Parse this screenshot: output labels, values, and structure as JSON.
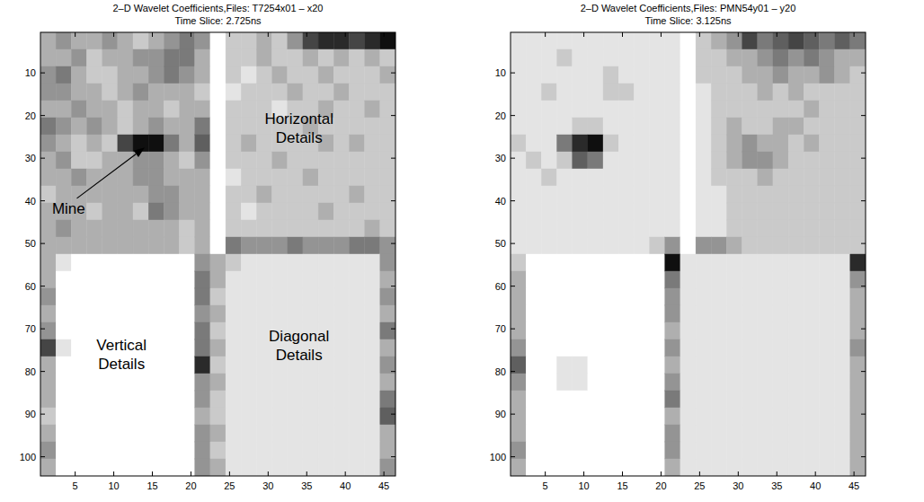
{
  "chart_data": [
    {
      "type": "heatmap",
      "title": "2–D Wavelet Coefficients,Files: T7254x01 – x20",
      "subtitle": "Time Slice: 2.725ns",
      "annotations": [
        "Mine",
        "Horizontal Details",
        "Vertical Details",
        "Diagonal Details"
      ],
      "xlim": [
        0.5,
        46.5
      ],
      "ylim": [
        0.5,
        104.5
      ],
      "xticks": [
        5,
        10,
        15,
        20,
        25,
        30,
        35,
        40,
        45
      ],
      "yticks": [
        10,
        20,
        30,
        40,
        50,
        60,
        70,
        80,
        90,
        100
      ],
      "clim": [
        0,
        9
      ],
      "x_bins": [
        0.5,
        2.5,
        4.5,
        6.5,
        8.5,
        10.5,
        12.5,
        14.5,
        16.5,
        18.5,
        20.5,
        22.5,
        24.5,
        26.5,
        28.5,
        30.5,
        32.5,
        34.5,
        36.5,
        38.5,
        40.5,
        42.5,
        44.5,
        46.5
      ],
      "y_bins": [
        0.5,
        4.5,
        8.5,
        12.5,
        16.5,
        20.5,
        24.5,
        28.5,
        32.5,
        36.5,
        40.5,
        44.5,
        48.5,
        52.5,
        56.5,
        60.5,
        64.5,
        68.5,
        72.5,
        76.5,
        80.5,
        84.5,
        88.5,
        92.5,
        96.5,
        100.5,
        104.5
      ],
      "cells": [
        [
          3,
          4,
          3,
          3,
          4,
          3,
          2,
          3,
          4,
          5,
          4,
          0,
          2,
          2,
          3,
          2,
          4,
          7,
          8,
          8,
          7,
          8,
          9
        ],
        [
          3,
          3,
          4,
          2,
          3,
          3,
          4,
          4,
          5,
          5,
          3,
          0,
          2,
          2,
          3,
          2,
          2,
          3,
          2,
          3,
          2,
          3,
          2
        ],
        [
          4,
          5,
          3,
          2,
          2,
          3,
          3,
          4,
          5,
          4,
          3,
          0,
          2,
          1,
          2,
          3,
          2,
          2,
          3,
          2,
          2,
          2,
          3
        ],
        [
          4,
          4,
          3,
          3,
          2,
          3,
          4,
          3,
          3,
          3,
          2,
          0,
          1,
          2,
          2,
          2,
          3,
          2,
          2,
          3,
          2,
          2,
          2
        ],
        [
          3,
          3,
          4,
          3,
          3,
          2,
          3,
          3,
          2,
          3,
          3,
          0,
          2,
          2,
          2,
          1,
          2,
          2,
          3,
          2,
          2,
          3,
          2
        ],
        [
          5,
          4,
          3,
          4,
          3,
          2,
          3,
          4,
          3,
          3,
          5,
          0,
          2,
          2,
          2,
          2,
          2,
          3,
          2,
          2,
          2,
          2,
          2
        ],
        [
          4,
          3,
          2,
          3,
          2,
          7,
          9,
          9,
          5,
          3,
          6,
          0,
          2,
          3,
          2,
          2,
          2,
          2,
          3,
          2,
          3,
          2,
          2
        ],
        [
          3,
          4,
          2,
          2,
          3,
          3,
          4,
          4,
          3,
          2,
          4,
          0,
          2,
          2,
          2,
          3,
          2,
          2,
          2,
          2,
          2,
          2,
          2
        ],
        [
          3,
          3,
          4,
          3,
          3,
          3,
          4,
          4,
          3,
          3,
          3,
          0,
          1,
          2,
          2,
          2,
          2,
          3,
          2,
          2,
          2,
          2,
          2
        ],
        [
          2,
          3,
          3,
          3,
          3,
          3,
          3,
          4,
          4,
          3,
          3,
          0,
          2,
          2,
          3,
          2,
          2,
          2,
          2,
          2,
          3,
          2,
          2
        ],
        [
          3,
          3,
          3,
          2,
          3,
          3,
          2,
          5,
          4,
          3,
          3,
          0,
          2,
          1,
          2,
          2,
          2,
          2,
          3,
          2,
          2,
          2,
          2
        ],
        [
          3,
          4,
          3,
          3,
          3,
          3,
          3,
          3,
          3,
          2,
          3,
          0,
          2,
          2,
          2,
          2,
          2,
          2,
          2,
          2,
          2,
          3,
          2
        ],
        [
          3,
          3,
          3,
          3,
          3,
          3,
          3,
          3,
          3,
          2,
          3,
          0,
          5,
          4,
          4,
          4,
          5,
          4,
          4,
          4,
          5,
          5,
          4
        ],
        [
          3,
          1,
          0,
          0,
          0,
          0,
          0,
          0,
          0,
          0,
          4,
          3,
          2,
          1,
          1,
          1,
          1,
          1,
          1,
          1,
          1,
          1,
          4
        ],
        [
          3,
          0,
          0,
          0,
          0,
          0,
          0,
          0,
          0,
          0,
          5,
          3,
          1,
          1,
          1,
          1,
          1,
          1,
          1,
          1,
          1,
          1,
          3
        ],
        [
          4,
          0,
          0,
          0,
          0,
          0,
          0,
          0,
          0,
          0,
          5,
          2,
          1,
          1,
          1,
          1,
          1,
          1,
          1,
          1,
          1,
          1,
          4
        ],
        [
          3,
          0,
          0,
          0,
          0,
          0,
          0,
          0,
          0,
          0,
          4,
          3,
          1,
          1,
          1,
          1,
          1,
          1,
          1,
          1,
          1,
          1,
          3
        ],
        [
          4,
          0,
          0,
          0,
          0,
          0,
          0,
          0,
          0,
          0,
          5,
          2,
          1,
          1,
          1,
          1,
          1,
          1,
          1,
          1,
          1,
          1,
          5
        ],
        [
          7,
          1,
          0,
          0,
          0,
          0,
          0,
          0,
          0,
          0,
          5,
          3,
          1,
          1,
          1,
          1,
          1,
          1,
          1,
          1,
          1,
          1,
          3
        ],
        [
          3,
          0,
          0,
          0,
          0,
          0,
          0,
          0,
          0,
          0,
          8,
          2,
          1,
          1,
          1,
          1,
          1,
          1,
          1,
          1,
          1,
          1,
          4
        ],
        [
          3,
          0,
          0,
          0,
          0,
          0,
          0,
          0,
          0,
          0,
          4,
          3,
          1,
          1,
          1,
          1,
          1,
          1,
          1,
          1,
          1,
          1,
          3
        ],
        [
          3,
          0,
          0,
          0,
          0,
          0,
          0,
          0,
          0,
          0,
          4,
          2,
          1,
          1,
          1,
          1,
          1,
          1,
          1,
          1,
          1,
          1,
          5
        ],
        [
          2,
          0,
          0,
          0,
          0,
          0,
          0,
          0,
          0,
          0,
          3,
          2,
          1,
          1,
          1,
          1,
          1,
          1,
          1,
          1,
          1,
          1,
          6
        ],
        [
          3,
          0,
          0,
          0,
          0,
          0,
          0,
          0,
          0,
          0,
          4,
          3,
          1,
          1,
          1,
          1,
          1,
          1,
          1,
          1,
          1,
          1,
          3
        ],
        [
          4,
          0,
          0,
          0,
          0,
          0,
          0,
          0,
          0,
          0,
          4,
          2,
          1,
          1,
          1,
          1,
          1,
          1,
          1,
          1,
          1,
          1,
          3
        ],
        [
          3,
          0,
          0,
          0,
          0,
          0,
          0,
          0,
          0,
          0,
          4,
          3,
          1,
          1,
          1,
          1,
          1,
          1,
          1,
          1,
          1,
          1,
          4
        ]
      ]
    },
    {
      "type": "heatmap",
      "title": "2–D Wavelet Coefficients,Files: PMN54y01 – y20",
      "subtitle": "Time Slice: 3.125ns",
      "xlim": [
        0.5,
        46.5
      ],
      "ylim": [
        0.5,
        104.5
      ],
      "xticks": [
        5,
        10,
        15,
        20,
        25,
        30,
        35,
        40,
        45
      ],
      "yticks": [
        10,
        20,
        30,
        40,
        50,
        60,
        70,
        80,
        90,
        100
      ],
      "clim": [
        0,
        9
      ],
      "x_bins": [
        0.5,
        2.5,
        4.5,
        6.5,
        8.5,
        10.5,
        12.5,
        14.5,
        16.5,
        18.5,
        20.5,
        22.5,
        24.5,
        26.5,
        28.5,
        30.5,
        32.5,
        34.5,
        36.5,
        38.5,
        40.5,
        42.5,
        44.5,
        46.5
      ],
      "y_bins": [
        0.5,
        4.5,
        8.5,
        12.5,
        16.5,
        20.5,
        24.5,
        28.5,
        32.5,
        36.5,
        40.5,
        44.5,
        48.5,
        52.5,
        56.5,
        60.5,
        64.5,
        68.5,
        72.5,
        76.5,
        80.5,
        84.5,
        88.5,
        92.5,
        96.5,
        100.5,
        104.5
      ],
      "cells": [
        [
          1,
          1,
          1,
          1,
          1,
          1,
          1,
          1,
          1,
          1,
          1,
          0,
          2,
          3,
          4,
          7,
          5,
          6,
          7,
          6,
          5,
          6,
          5
        ],
        [
          1,
          1,
          1,
          2,
          1,
          1,
          1,
          1,
          1,
          1,
          1,
          0,
          2,
          2,
          3,
          3,
          4,
          5,
          4,
          5,
          4,
          3,
          3
        ],
        [
          1,
          1,
          1,
          1,
          1,
          1,
          2,
          1,
          1,
          1,
          1,
          0,
          2,
          2,
          2,
          3,
          3,
          4,
          3,
          3,
          4,
          3,
          2
        ],
        [
          1,
          1,
          2,
          1,
          1,
          1,
          2,
          2,
          1,
          1,
          1,
          0,
          1,
          2,
          2,
          2,
          3,
          2,
          3,
          2,
          2,
          2,
          2
        ],
        [
          1,
          1,
          1,
          1,
          1,
          1,
          1,
          1,
          1,
          1,
          1,
          0,
          1,
          2,
          2,
          2,
          2,
          2,
          2,
          3,
          2,
          2,
          2
        ],
        [
          1,
          1,
          1,
          1,
          2,
          2,
          1,
          1,
          1,
          1,
          1,
          0,
          1,
          2,
          3,
          2,
          2,
          3,
          3,
          2,
          2,
          2,
          2
        ],
        [
          2,
          1,
          1,
          5,
          8,
          9,
          2,
          1,
          1,
          1,
          1,
          0,
          1,
          2,
          3,
          4,
          3,
          3,
          2,
          3,
          2,
          2,
          2
        ],
        [
          1,
          2,
          1,
          2,
          6,
          5,
          1,
          1,
          1,
          1,
          1,
          0,
          1,
          2,
          3,
          4,
          4,
          3,
          2,
          2,
          2,
          2,
          2
        ],
        [
          1,
          1,
          2,
          1,
          1,
          1,
          1,
          1,
          1,
          1,
          1,
          0,
          1,
          2,
          2,
          2,
          3,
          2,
          2,
          2,
          2,
          2,
          2
        ],
        [
          1,
          1,
          1,
          1,
          1,
          1,
          1,
          1,
          1,
          1,
          1,
          0,
          1,
          1,
          2,
          2,
          2,
          2,
          2,
          2,
          2,
          2,
          2
        ],
        [
          1,
          1,
          1,
          1,
          1,
          1,
          1,
          1,
          1,
          1,
          1,
          0,
          1,
          1,
          2,
          2,
          2,
          2,
          2,
          2,
          2,
          2,
          2
        ],
        [
          1,
          1,
          1,
          1,
          1,
          1,
          1,
          1,
          1,
          1,
          1,
          0,
          1,
          1,
          2,
          2,
          2,
          2,
          2,
          2,
          2,
          2,
          2
        ],
        [
          1,
          1,
          1,
          1,
          1,
          1,
          1,
          1,
          1,
          2,
          4,
          0,
          4,
          4,
          3,
          2,
          2,
          2,
          2,
          2,
          2,
          2,
          2
        ],
        [
          2,
          0,
          0,
          0,
          0,
          0,
          0,
          0,
          0,
          0,
          9,
          1,
          1,
          1,
          1,
          1,
          1,
          1,
          1,
          1,
          1,
          1,
          8
        ],
        [
          3,
          0,
          0,
          0,
          0,
          0,
          0,
          0,
          0,
          0,
          5,
          1,
          1,
          1,
          1,
          1,
          1,
          1,
          1,
          1,
          1,
          1,
          4
        ],
        [
          3,
          0,
          0,
          0,
          0,
          0,
          0,
          0,
          0,
          0,
          4,
          1,
          1,
          1,
          1,
          1,
          1,
          1,
          1,
          1,
          1,
          1,
          3
        ],
        [
          3,
          0,
          0,
          0,
          0,
          0,
          0,
          0,
          0,
          0,
          4,
          1,
          1,
          1,
          1,
          1,
          1,
          1,
          1,
          1,
          1,
          1,
          3
        ],
        [
          3,
          0,
          0,
          0,
          0,
          0,
          0,
          0,
          0,
          0,
          3,
          1,
          1,
          1,
          1,
          1,
          1,
          1,
          1,
          1,
          1,
          1,
          3
        ],
        [
          4,
          0,
          0,
          0,
          0,
          0,
          0,
          0,
          0,
          0,
          4,
          1,
          1,
          1,
          1,
          1,
          1,
          1,
          1,
          1,
          1,
          1,
          4
        ],
        [
          6,
          0,
          0,
          1,
          1,
          0,
          0,
          0,
          0,
          0,
          3,
          1,
          1,
          1,
          1,
          1,
          1,
          1,
          1,
          1,
          1,
          1,
          3
        ],
        [
          4,
          0,
          0,
          1,
          1,
          0,
          0,
          0,
          0,
          0,
          4,
          1,
          1,
          1,
          1,
          1,
          1,
          1,
          1,
          1,
          1,
          1,
          3
        ],
        [
          3,
          0,
          0,
          0,
          0,
          0,
          0,
          0,
          0,
          0,
          5,
          1,
          1,
          1,
          1,
          1,
          1,
          1,
          1,
          1,
          1,
          1,
          3
        ],
        [
          3,
          0,
          0,
          0,
          0,
          0,
          0,
          0,
          0,
          0,
          3,
          1,
          1,
          1,
          1,
          1,
          1,
          1,
          1,
          1,
          1,
          1,
          3
        ],
        [
          3,
          0,
          0,
          0,
          0,
          0,
          0,
          0,
          0,
          0,
          4,
          1,
          1,
          1,
          1,
          1,
          1,
          1,
          1,
          1,
          1,
          1,
          3
        ],
        [
          4,
          0,
          0,
          0,
          0,
          0,
          0,
          0,
          0,
          0,
          4,
          1,
          1,
          1,
          1,
          1,
          1,
          1,
          1,
          1,
          1,
          1,
          3
        ],
        [
          3,
          0,
          0,
          0,
          0,
          0,
          0,
          0,
          0,
          0,
          3,
          1,
          1,
          1,
          1,
          1,
          1,
          1,
          1,
          1,
          1,
          1,
          3
        ]
      ]
    }
  ]
}
